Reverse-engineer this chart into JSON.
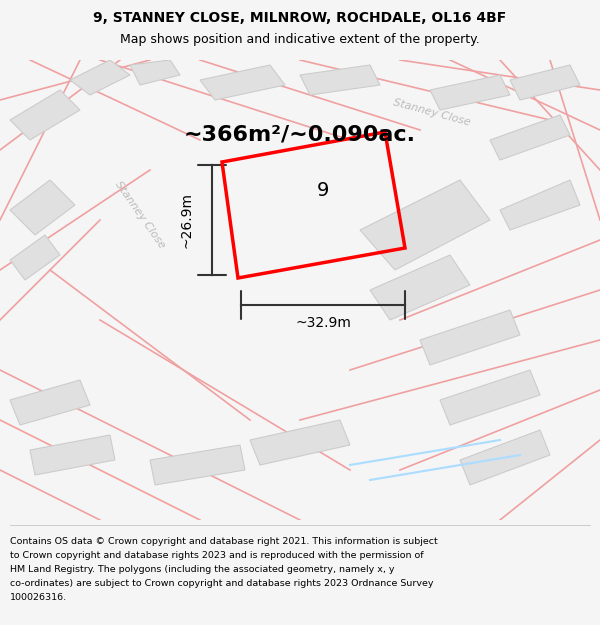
{
  "title_line1": "9, STANNEY CLOSE, MILNROW, ROCHDALE, OL16 4BF",
  "title_line2": "Map shows position and indicative extent of the property.",
  "area_text": "~366m²/~0.090ac.",
  "label_number": "9",
  "dim_width": "~32.9m",
  "dim_height": "~26.9m",
  "street_label_left": "Stanney Close",
  "street_label_top": "Stanney Close",
  "footer_lines": [
    "Contains OS data © Crown copyright and database right 2021. This information is subject",
    "to Crown copyright and database rights 2023 and is reproduced with the permission of",
    "HM Land Registry. The polygons (including the associated geometry, namely x, y",
    "co-ordinates) are subject to Crown copyright and database rights 2023 Ordnance Survey",
    "100026316."
  ],
  "bg_color": "#f5f5f5",
  "map_bg": "#ffffff",
  "plot_color": "#ff0000",
  "road_color": "#f0a0a0",
  "building_color": "#e0e0e0",
  "building_stroke": "#cccccc",
  "dim_color": "#333333",
  "figsize": [
    6.0,
    6.25
  ],
  "dpi": 100
}
